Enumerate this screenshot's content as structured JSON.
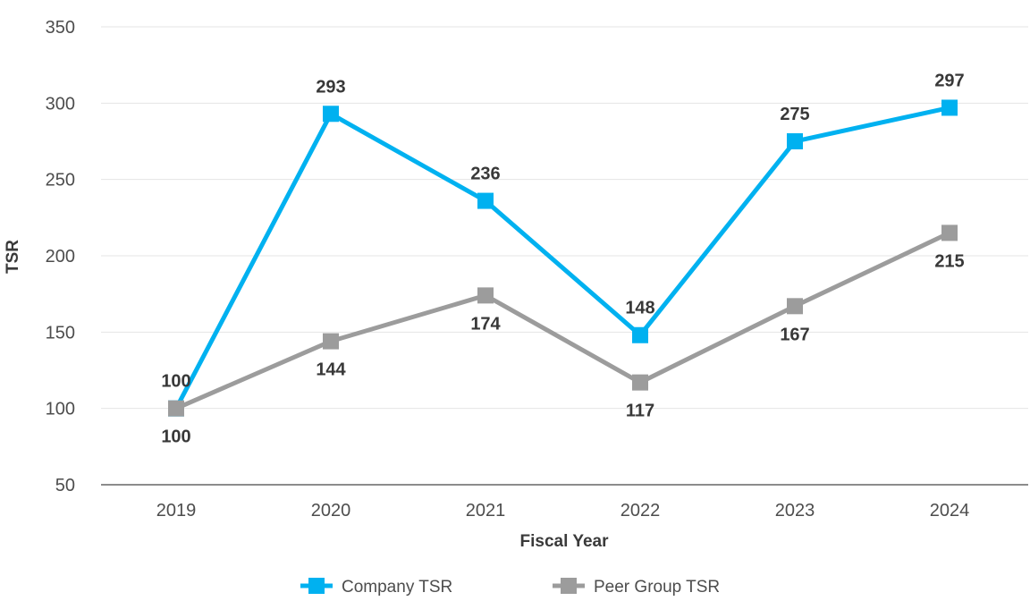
{
  "chart_data": {
    "type": "line",
    "title": "",
    "xlabel": "Fiscal Year",
    "ylabel": "TSR",
    "categories": [
      "2019",
      "2020",
      "2021",
      "2022",
      "2023",
      "2024"
    ],
    "series": [
      {
        "name": "Company TSR",
        "color": "#00B1F0",
        "marker": "square",
        "values": [
          100,
          293,
          236,
          148,
          275,
          297
        ],
        "label_position": "above"
      },
      {
        "name": "Peer Group TSR",
        "color": "#9C9C9C",
        "marker": "square",
        "values": [
          100,
          144,
          174,
          117,
          167,
          215
        ],
        "label_position": "below"
      }
    ],
    "y_ticks": [
      50,
      100,
      150,
      200,
      250,
      300,
      350
    ],
    "ylim": [
      50,
      350
    ],
    "grid": true,
    "legend_position": "bottom"
  },
  "colors": {
    "background": "#FFFFFF",
    "gridline": "#E4E4E4",
    "axis_line": "#8C8C8C",
    "tick_label": "#4D4D4D",
    "data_label": "#383838",
    "company_series": "#00B1F0",
    "peer_series": "#9C9C9C"
  }
}
